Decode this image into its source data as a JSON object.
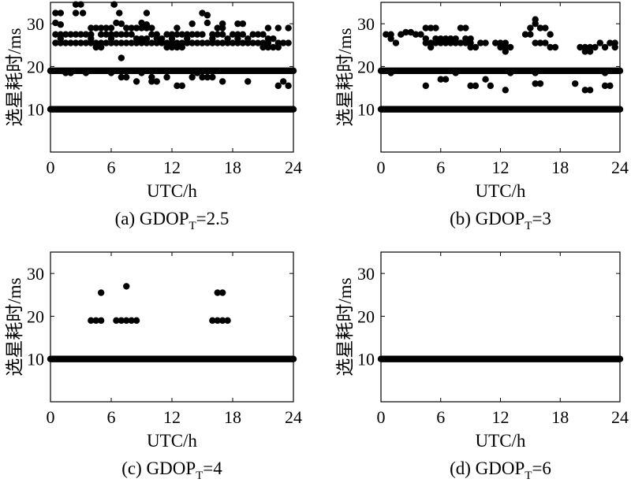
{
  "chart_data": [
    {
      "type": "scatter",
      "caption": {
        "prefix": "(a) GDOP",
        "subscript": "T",
        "suffix": "=2.5"
      },
      "xlabel": "UTC/h",
      "ylabel": "选星耗时/ms",
      "xlim": [
        0,
        24
      ],
      "ylim": [
        0,
        35
      ],
      "xticks": [
        0,
        6,
        12,
        18,
        24
      ],
      "yticks": [
        10,
        20,
        30
      ],
      "grid": false,
      "baseline_rows": [
        {
          "y": 10,
          "x_from": 0,
          "x_to": 24
        },
        {
          "y": 19,
          "x_from": 0,
          "x_to": 24
        }
      ],
      "points": [
        [
          0.5,
          32.5
        ],
        [
          1.0,
          32.5
        ],
        [
          2.5,
          34.5
        ],
        [
          3.0,
          34.5
        ],
        [
          2.5,
          32.5
        ],
        [
          3.2,
          32.5
        ],
        [
          6.3,
          34.5
        ],
        [
          6.8,
          32.5
        ],
        [
          9.5,
          32.5
        ],
        [
          15.0,
          32.5
        ],
        [
          15.5,
          32.0
        ],
        [
          0.5,
          30.2
        ],
        [
          1.0,
          29.8
        ],
        [
          6.5,
          30.2
        ],
        [
          7.0,
          30.0
        ],
        [
          9.0,
          30.2
        ],
        [
          9.5,
          29.8
        ],
        [
          14.0,
          30.0
        ],
        [
          15.5,
          30.2
        ],
        [
          17.0,
          30.0
        ],
        [
          18.5,
          30.0
        ],
        [
          19.0,
          30.0
        ],
        [
          4.0,
          29.0
        ],
        [
          4.5,
          29.0
        ],
        [
          5.0,
          29.0
        ],
        [
          5.5,
          29.0
        ],
        [
          6.0,
          29.0
        ],
        [
          7.5,
          29.0
        ],
        [
          8.0,
          29.0
        ],
        [
          8.5,
          29.0
        ],
        [
          9.0,
          29.0
        ],
        [
          9.5,
          29.0
        ],
        [
          10.0,
          29.0
        ],
        [
          12.5,
          29.0
        ],
        [
          16.5,
          29.0
        ],
        [
          17.0,
          29.0
        ],
        [
          21.5,
          29.0
        ],
        [
          22.5,
          29.0
        ],
        [
          23.5,
          29.0
        ],
        [
          0.5,
          27.5
        ],
        [
          1.0,
          27.5
        ],
        [
          1.5,
          27.5
        ],
        [
          2.0,
          27.5
        ],
        [
          2.5,
          27.5
        ],
        [
          3.0,
          27.5
        ],
        [
          3.5,
          27.5
        ],
        [
          4.0,
          27.5
        ],
        [
          5.0,
          27.5
        ],
        [
          5.5,
          27.5
        ],
        [
          6.0,
          27.5
        ],
        [
          6.5,
          27.5
        ],
        [
          7.0,
          27.5
        ],
        [
          7.5,
          27.5
        ],
        [
          8.0,
          27.5
        ],
        [
          10.0,
          27.5
        ],
        [
          10.5,
          27.5
        ],
        [
          11.5,
          27.5
        ],
        [
          12.0,
          27.5
        ],
        [
          12.5,
          27.5
        ],
        [
          13.0,
          27.5
        ],
        [
          13.5,
          27.5
        ],
        [
          14.0,
          27.5
        ],
        [
          14.5,
          27.5
        ],
        [
          15.0,
          27.5
        ],
        [
          16.0,
          27.5
        ],
        [
          16.5,
          27.5
        ],
        [
          17.0,
          27.5
        ],
        [
          18.0,
          27.5
        ],
        [
          18.5,
          27.5
        ],
        [
          19.0,
          27.5
        ],
        [
          20.0,
          27.5
        ],
        [
          20.5,
          27.5
        ],
        [
          21.0,
          27.5
        ],
        [
          1.0,
          26.5
        ],
        [
          4.0,
          26.5
        ],
        [
          6.0,
          26.5
        ],
        [
          8.5,
          26.5
        ],
        [
          9.0,
          26.5
        ],
        [
          9.5,
          26.5
        ],
        [
          10.5,
          26.5
        ],
        [
          11.0,
          26.5
        ],
        [
          12.0,
          26.5
        ],
        [
          13.5,
          26.5
        ],
        [
          16.0,
          26.5
        ],
        [
          17.5,
          26.5
        ],
        [
          18.5,
          26.5
        ],
        [
          19.5,
          26.5
        ],
        [
          21.5,
          26.5
        ],
        [
          22.0,
          26.5
        ],
        [
          0.5,
          25.5
        ],
        [
          1.0,
          25.5
        ],
        [
          1.5,
          25.5
        ],
        [
          2.0,
          25.5
        ],
        [
          2.5,
          25.5
        ],
        [
          3.0,
          25.5
        ],
        [
          3.5,
          25.5
        ],
        [
          4.0,
          25.5
        ],
        [
          4.5,
          25.5
        ],
        [
          5.0,
          25.5
        ],
        [
          5.5,
          25.5
        ],
        [
          6.0,
          25.5
        ],
        [
          6.5,
          25.5
        ],
        [
          7.0,
          25.5
        ],
        [
          7.5,
          25.5
        ],
        [
          8.0,
          25.5
        ],
        [
          8.5,
          25.5
        ],
        [
          9.0,
          25.5
        ],
        [
          9.5,
          25.5
        ],
        [
          10.0,
          25.5
        ],
        [
          10.5,
          25.5
        ],
        [
          11.0,
          25.5
        ],
        [
          11.5,
          25.5
        ],
        [
          12.0,
          25.5
        ],
        [
          12.5,
          25.5
        ],
        [
          13.0,
          25.5
        ],
        [
          13.5,
          25.5
        ],
        [
          14.0,
          25.5
        ],
        [
          14.5,
          25.5
        ],
        [
          15.0,
          25.5
        ],
        [
          15.5,
          25.5
        ],
        [
          16.0,
          25.5
        ],
        [
          16.5,
          25.5
        ],
        [
          17.0,
          25.5
        ],
        [
          17.5,
          25.5
        ],
        [
          18.0,
          25.5
        ],
        [
          18.5,
          25.5
        ],
        [
          19.0,
          25.5
        ],
        [
          19.5,
          25.5
        ],
        [
          20.0,
          25.5
        ],
        [
          20.5,
          25.5
        ],
        [
          21.0,
          25.5
        ],
        [
          21.5,
          25.5
        ],
        [
          22.5,
          25.5
        ],
        [
          23.0,
          25.5
        ],
        [
          23.5,
          25.5
        ],
        [
          4.5,
          24.5
        ],
        [
          5.0,
          24.5
        ],
        [
          11.5,
          24.5
        ],
        [
          12.0,
          24.5
        ],
        [
          12.5,
          24.5
        ],
        [
          13.0,
          24.5
        ],
        [
          21.0,
          24.5
        ],
        [
          21.5,
          24.5
        ],
        [
          22.0,
          24.5
        ],
        [
          22.5,
          24.5
        ],
        [
          7.0,
          22.0
        ],
        [
          1.5,
          18.5
        ],
        [
          2.0,
          18.5
        ],
        [
          3.5,
          18.5
        ],
        [
          6.0,
          18.5
        ],
        [
          9.0,
          18.5
        ],
        [
          14.5,
          18.5
        ],
        [
          7.0,
          17.5
        ],
        [
          7.5,
          17.5
        ],
        [
          10.0,
          17.5
        ],
        [
          11.5,
          17.5
        ],
        [
          14.0,
          17.5
        ],
        [
          15.0,
          17.5
        ],
        [
          15.5,
          17.5
        ],
        [
          16.0,
          17.5
        ],
        [
          8.5,
          16.5
        ],
        [
          10.0,
          16.5
        ],
        [
          10.5,
          16.5
        ],
        [
          17.0,
          16.5
        ],
        [
          19.5,
          16.5
        ],
        [
          23.0,
          16.5
        ],
        [
          12.5,
          15.5
        ],
        [
          13.0,
          15.5
        ],
        [
          22.5,
          15.5
        ],
        [
          23.5,
          15.5
        ]
      ]
    },
    {
      "type": "scatter",
      "caption": {
        "prefix": "(b) GDOP",
        "subscript": "T",
        "suffix": "=3"
      },
      "xlabel": "UTC/h",
      "ylabel": "选星耗时/ms",
      "xlim": [
        0,
        24
      ],
      "ylim": [
        0,
        35
      ],
      "xticks": [
        0,
        6,
        12,
        18,
        24
      ],
      "yticks": [
        10,
        20,
        30
      ],
      "grid": false,
      "baseline_rows": [
        {
          "y": 10,
          "x_from": 0,
          "x_to": 24
        },
        {
          "y": 19,
          "x_from": 0,
          "x_to": 24
        }
      ],
      "points": [
        [
          15.5,
          31.0
        ],
        [
          15.5,
          30.0
        ],
        [
          4.5,
          29.0
        ],
        [
          5.0,
          29.0
        ],
        [
          5.5,
          29.0
        ],
        [
          8.0,
          29.0
        ],
        [
          8.5,
          29.0
        ],
        [
          15.0,
          29.0
        ],
        [
          16.0,
          29.0
        ],
        [
          16.5,
          29.0
        ],
        [
          2.5,
          28.0
        ],
        [
          3.0,
          28.0
        ],
        [
          0.5,
          27.5
        ],
        [
          1.0,
          27.5
        ],
        [
          2.0,
          27.5
        ],
        [
          3.5,
          27.5
        ],
        [
          4.0,
          27.5
        ],
        [
          14.5,
          27.5
        ],
        [
          15.0,
          27.5
        ],
        [
          17.0,
          27.5
        ],
        [
          1.0,
          26.5
        ],
        [
          4.5,
          26.5
        ],
        [
          5.5,
          26.5
        ],
        [
          6.0,
          26.5
        ],
        [
          6.5,
          26.5
        ],
        [
          7.0,
          26.5
        ],
        [
          7.5,
          26.5
        ],
        [
          8.5,
          26.5
        ],
        [
          9.0,
          26.5
        ],
        [
          1.5,
          25.5
        ],
        [
          4.5,
          25.5
        ],
        [
          5.0,
          25.5
        ],
        [
          5.5,
          25.5
        ],
        [
          6.0,
          25.5
        ],
        [
          6.5,
          25.5
        ],
        [
          7.0,
          25.5
        ],
        [
          7.5,
          25.5
        ],
        [
          8.0,
          25.5
        ],
        [
          8.5,
          25.5
        ],
        [
          9.0,
          25.5
        ],
        [
          10.0,
          25.5
        ],
        [
          10.5,
          25.5
        ],
        [
          11.5,
          25.5
        ],
        [
          12.0,
          25.5
        ],
        [
          12.5,
          25.5
        ],
        [
          15.5,
          25.5
        ],
        [
          16.0,
          25.5
        ],
        [
          16.5,
          25.5
        ],
        [
          22.0,
          25.5
        ],
        [
          23.0,
          25.5
        ],
        [
          23.5,
          25.5
        ],
        [
          5.0,
          24.5
        ],
        [
          9.0,
          24.5
        ],
        [
          9.5,
          24.5
        ],
        [
          12.0,
          24.5
        ],
        [
          12.5,
          24.5
        ],
        [
          13.0,
          24.5
        ],
        [
          17.0,
          24.5
        ],
        [
          17.5,
          24.5
        ],
        [
          20.0,
          24.5
        ],
        [
          20.5,
          24.5
        ],
        [
          21.0,
          24.5
        ],
        [
          21.5,
          24.5
        ],
        [
          22.5,
          24.5
        ],
        [
          23.5,
          24.5
        ],
        [
          12.5,
          23.5
        ],
        [
          20.5,
          23.5
        ],
        [
          21.0,
          23.5
        ],
        [
          1.0,
          18.5
        ],
        [
          7.5,
          18.5
        ],
        [
          13.0,
          18.5
        ],
        [
          15.5,
          18.5
        ],
        [
          22.5,
          18.5
        ],
        [
          6.0,
          17.0
        ],
        [
          6.5,
          17.0
        ],
        [
          10.5,
          17.0
        ],
        [
          4.5,
          15.5
        ],
        [
          9.0,
          15.5
        ],
        [
          9.5,
          15.5
        ],
        [
          11.0,
          15.5
        ],
        [
          15.5,
          16.0
        ],
        [
          16.0,
          16.0
        ],
        [
          19.5,
          16.0
        ],
        [
          22.5,
          15.5
        ],
        [
          23.0,
          15.5
        ],
        [
          12.5,
          14.5
        ],
        [
          20.5,
          14.5
        ],
        [
          21.0,
          14.5
        ]
      ]
    },
    {
      "type": "scatter",
      "caption": {
        "prefix": "(c) GDOP",
        "subscript": "T",
        "suffix": "=4"
      },
      "xlabel": "UTC/h",
      "ylabel": "选星耗时/ms",
      "xlim": [
        0,
        24
      ],
      "ylim": [
        0,
        35
      ],
      "xticks": [
        0,
        6,
        12,
        18,
        24
      ],
      "yticks": [
        10,
        20,
        30
      ],
      "grid": false,
      "baseline_rows": [
        {
          "y": 10,
          "x_from": 0,
          "x_to": 24
        }
      ],
      "points": [
        [
          5.0,
          25.5
        ],
        [
          7.5,
          27.0
        ],
        [
          16.5,
          25.5
        ],
        [
          17.0,
          25.5
        ],
        [
          4.0,
          19.0
        ],
        [
          4.5,
          19.0
        ],
        [
          5.0,
          19.0
        ],
        [
          6.5,
          19.0
        ],
        [
          7.0,
          19.0
        ],
        [
          7.5,
          19.0
        ],
        [
          8.0,
          19.0
        ],
        [
          8.5,
          19.0
        ],
        [
          16.0,
          19.0
        ],
        [
          16.5,
          19.0
        ],
        [
          17.0,
          19.0
        ],
        [
          17.5,
          19.0
        ]
      ]
    },
    {
      "type": "scatter",
      "caption": {
        "prefix": "(d) GDOP",
        "subscript": "T",
        "suffix": "=6"
      },
      "xlabel": "UTC/h",
      "ylabel": "选星耗时/ms",
      "xlim": [
        0,
        24
      ],
      "ylim": [
        0,
        35
      ],
      "xticks": [
        0,
        6,
        12,
        18,
        24
      ],
      "yticks": [
        10,
        20,
        30
      ],
      "grid": false,
      "baseline_rows": [
        {
          "y": 10,
          "x_from": 0,
          "x_to": 24
        }
      ],
      "points": []
    }
  ]
}
